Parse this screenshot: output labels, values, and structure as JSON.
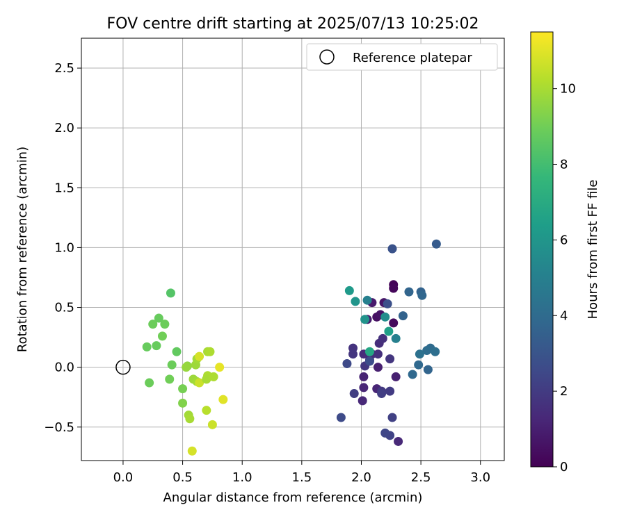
{
  "chart_data": {
    "type": "scatter",
    "title": "FOV centre drift starting at 2025/07/13 10:25:02",
    "xlabel": "Angular distance from reference (arcmin)",
    "ylabel": "Rotation from reference (arcmin)",
    "xlim": [
      -0.35,
      3.2
    ],
    "ylim": [
      -0.78,
      2.75
    ],
    "xticks": [
      0.0,
      0.5,
      1.0,
      1.5,
      2.0,
      2.5,
      3.0
    ],
    "xtick_labels": [
      "0.0",
      "0.5",
      "1.0",
      "1.5",
      "2.0",
      "2.5",
      "3.0"
    ],
    "yticks": [
      -0.5,
      0.0,
      0.5,
      1.0,
      1.5,
      2.0,
      2.5
    ],
    "ytick_labels": [
      "−0.5",
      "0.0",
      "0.5",
      "1.0",
      "1.5",
      "2.0",
      "2.5"
    ],
    "grid": true,
    "legend": {
      "position": "upper right",
      "entries": [
        "Reference platepar"
      ]
    },
    "reference_point": {
      "x": 0.0,
      "y": 0.0,
      "marker": "open-circle"
    },
    "colorbar": {
      "label": "Hours from first FF file",
      "min": 0,
      "max": 11.5,
      "ticks": [
        0,
        2,
        4,
        6,
        8,
        10
      ],
      "tick_labels": [
        "0",
        "2",
        "4",
        "6",
        "8",
        "10"
      ],
      "colormap": "viridis"
    },
    "points": [
      {
        "x": 2.27,
        "y": 0.69,
        "h": 0.1
      },
      {
        "x": 2.27,
        "y": 0.66,
        "h": 0.2
      },
      {
        "x": 2.27,
        "y": 0.37,
        "h": 0.3
      },
      {
        "x": 2.13,
        "y": 0.42,
        "h": 0.5
      },
      {
        "x": 2.16,
        "y": 0.44,
        "h": 0.6
      },
      {
        "x": 2.19,
        "y": 0.54,
        "h": 0.7
      },
      {
        "x": 2.09,
        "y": 0.54,
        "h": 0.8
      },
      {
        "x": 2.05,
        "y": 0.4,
        "h": 0.9
      },
      {
        "x": 2.14,
        "y": 0.0,
        "h": 1.0
      },
      {
        "x": 2.02,
        "y": -0.08,
        "h": 1.1
      },
      {
        "x": 2.02,
        "y": -0.17,
        "h": 1.2
      },
      {
        "x": 2.01,
        "y": -0.28,
        "h": 1.3
      },
      {
        "x": 2.13,
        "y": -0.18,
        "h": 1.2
      },
      {
        "x": 2.29,
        "y": -0.08,
        "h": 1.0
      },
      {
        "x": 2.31,
        "y": -0.62,
        "h": 1.3
      },
      {
        "x": 2.02,
        "y": 0.11,
        "h": 1.4
      },
      {
        "x": 2.07,
        "y": 0.06,
        "h": 1.4
      },
      {
        "x": 2.15,
        "y": 0.2,
        "h": 1.5
      },
      {
        "x": 2.18,
        "y": 0.24,
        "h": 1.6
      },
      {
        "x": 2.09,
        "y": 0.11,
        "h": 1.5
      },
      {
        "x": 2.14,
        "y": 0.11,
        "h": 1.6
      },
      {
        "x": 2.03,
        "y": 0.01,
        "h": 1.8
      },
      {
        "x": 1.93,
        "y": 0.16,
        "h": 1.7
      },
      {
        "x": 1.93,
        "y": 0.11,
        "h": 1.8
      },
      {
        "x": 2.24,
        "y": 0.07,
        "h": 1.8
      },
      {
        "x": 2.17,
        "y": -0.2,
        "h": 1.9
      },
      {
        "x": 2.24,
        "y": -0.2,
        "h": 2.0
      },
      {
        "x": 2.17,
        "y": -0.22,
        "h": 2.1
      },
      {
        "x": 1.94,
        "y": -0.22,
        "h": 2.1
      },
      {
        "x": 2.26,
        "y": -0.42,
        "h": 2.2
      },
      {
        "x": 2.24,
        "y": -0.57,
        "h": 2.3
      },
      {
        "x": 2.2,
        "y": -0.55,
        "h": 2.4
      },
      {
        "x": 1.88,
        "y": 0.03,
        "h": 2.5
      },
      {
        "x": 1.83,
        "y": -0.42,
        "h": 2.6
      },
      {
        "x": 2.07,
        "y": 0.05,
        "h": 2.7
      },
      {
        "x": 2.22,
        "y": 0.53,
        "h": 2.8
      },
      {
        "x": 2.26,
        "y": 0.99,
        "h": 2.9
      },
      {
        "x": 2.63,
        "y": 1.03,
        "h": 3.3
      },
      {
        "x": 2.35,
        "y": 0.43,
        "h": 3.6
      },
      {
        "x": 2.4,
        "y": 0.63,
        "h": 3.7
      },
      {
        "x": 2.5,
        "y": 0.63,
        "h": 3.6
      },
      {
        "x": 2.51,
        "y": 0.6,
        "h": 3.8
      },
      {
        "x": 2.48,
        "y": 0.02,
        "h": 3.9
      },
      {
        "x": 2.56,
        "y": -0.02,
        "h": 3.7
      },
      {
        "x": 2.43,
        "y": -0.06,
        "h": 3.9
      },
      {
        "x": 2.58,
        "y": 0.16,
        "h": 4.0
      },
      {
        "x": 2.55,
        "y": 0.14,
        "h": 4.1
      },
      {
        "x": 2.49,
        "y": 0.11,
        "h": 4.3
      },
      {
        "x": 2.62,
        "y": 0.13,
        "h": 4.2
      },
      {
        "x": 2.29,
        "y": 0.24,
        "h": 5.0
      },
      {
        "x": 2.05,
        "y": 0.56,
        "h": 5.0
      },
      {
        "x": 2.2,
        "y": 0.42,
        "h": 5.6
      },
      {
        "x": 2.03,
        "y": 0.4,
        "h": 5.9
      },
      {
        "x": 1.95,
        "y": 0.55,
        "h": 6.0
      },
      {
        "x": 1.9,
        "y": 0.64,
        "h": 6.2
      },
      {
        "x": 2.23,
        "y": 0.3,
        "h": 6.5
      },
      {
        "x": 2.07,
        "y": 0.13,
        "h": 6.8
      },
      {
        "x": 0.4,
        "y": 0.62,
        "h": 8.4
      },
      {
        "x": 0.3,
        "y": 0.41,
        "h": 8.8
      },
      {
        "x": 0.25,
        "y": 0.36,
        "h": 8.9
      },
      {
        "x": 0.35,
        "y": 0.36,
        "h": 8.9
      },
      {
        "x": 0.33,
        "y": 0.26,
        "h": 9.0
      },
      {
        "x": 0.2,
        "y": 0.17,
        "h": 8.8
      },
      {
        "x": 0.28,
        "y": 0.18,
        "h": 8.8
      },
      {
        "x": 0.45,
        "y": 0.13,
        "h": 8.7
      },
      {
        "x": 0.41,
        "y": 0.02,
        "h": 8.9
      },
      {
        "x": 0.22,
        "y": -0.13,
        "h": 8.9
      },
      {
        "x": 0.39,
        "y": -0.1,
        "h": 9.0
      },
      {
        "x": 0.5,
        "y": -0.18,
        "h": 9.1
      },
      {
        "x": 0.5,
        "y": -0.3,
        "h": 9.3
      },
      {
        "x": 0.54,
        "y": 0.01,
        "h": 9.6
      },
      {
        "x": 0.53,
        "y": 0.0,
        "h": 9.7
      },
      {
        "x": 0.61,
        "y": 0.02,
        "h": 9.8
      },
      {
        "x": 0.62,
        "y": 0.07,
        "h": 9.9
      },
      {
        "x": 0.59,
        "y": -0.1,
        "h": 9.8
      },
      {
        "x": 0.62,
        "y": -0.12,
        "h": 9.9
      },
      {
        "x": 0.64,
        "y": -0.13,
        "h": 10.6
      },
      {
        "x": 0.55,
        "y": -0.4,
        "h": 9.9
      },
      {
        "x": 0.56,
        "y": -0.43,
        "h": 10.0
      },
      {
        "x": 0.71,
        "y": 0.13,
        "h": 10.0
      },
      {
        "x": 0.73,
        "y": 0.13,
        "h": 10.1
      },
      {
        "x": 0.71,
        "y": -0.07,
        "h": 10.1
      },
      {
        "x": 0.7,
        "y": -0.1,
        "h": 10.0
      },
      {
        "x": 0.76,
        "y": -0.08,
        "h": 10.1
      },
      {
        "x": 0.7,
        "y": -0.36,
        "h": 10.3
      },
      {
        "x": 0.75,
        "y": -0.48,
        "h": 10.6
      },
      {
        "x": 0.58,
        "y": -0.7,
        "h": 10.8
      },
      {
        "x": 0.64,
        "y": 0.09,
        "h": 10.8
      },
      {
        "x": 0.81,
        "y": 0.0,
        "h": 11.1
      },
      {
        "x": 0.84,
        "y": -0.27,
        "h": 11.0
      }
    ]
  }
}
